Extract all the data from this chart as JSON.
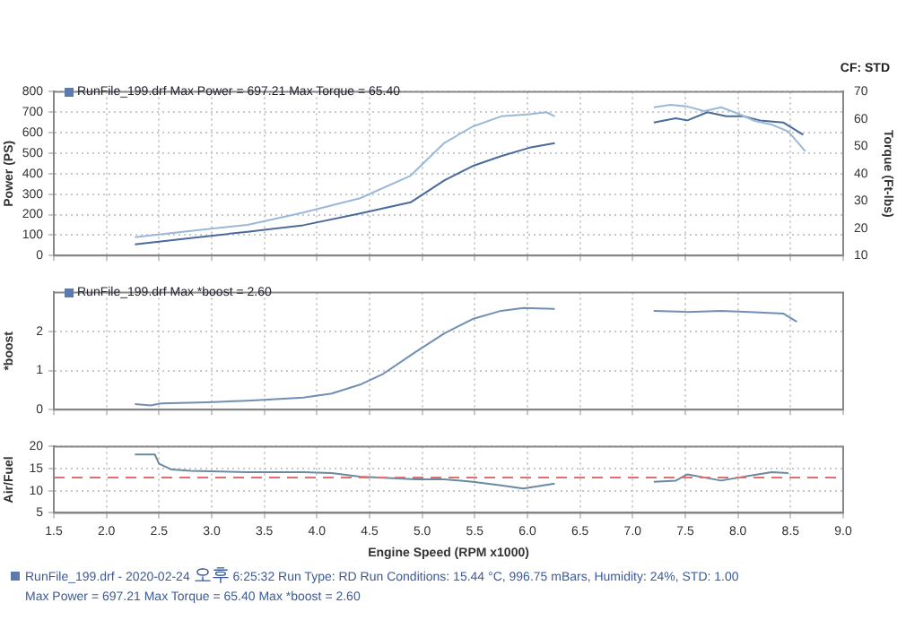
{
  "chart_data": [
    {
      "type": "line",
      "ylabel": "Power (PS)",
      "y2label": "Torque (Ft-lbs)",
      "annotations": [
        "RunFile_199.drf Max Power = 697.21    Max Torque = 65.40",
        "CF: STD"
      ],
      "xlim": [
        1.5,
        9.0
      ],
      "xticks": [
        {
          "value": 1.5,
          "label": null
        },
        {
          "value": 2,
          "label": null
        },
        {
          "value": 2.5,
          "label": null
        },
        {
          "value": 3,
          "label": null
        },
        {
          "value": 3.5,
          "label": null
        },
        {
          "value": 4,
          "label": null
        },
        {
          "value": 4.5,
          "label": null
        },
        {
          "value": 5,
          "label": null
        },
        {
          "value": 5.5,
          "label": null
        },
        {
          "value": 6,
          "label": null
        },
        {
          "value": 6.5,
          "label": null
        },
        {
          "value": 7,
          "label": null
        },
        {
          "value": 7.5,
          "label": null
        },
        {
          "value": 8,
          "label": null
        },
        {
          "value": 8.5,
          "label": null
        },
        {
          "value": 9,
          "label": null
        }
      ],
      "ylim": [
        0,
        800
      ],
      "yticks": [
        0,
        100,
        200,
        300,
        400,
        500,
        600,
        700,
        800
      ],
      "y2lim": [
        10,
        70
      ],
      "y2ticks": [
        10,
        20,
        30,
        40,
        50,
        60,
        70
      ],
      "tick_labels": "y",
      "grid": true,
      "marker": "none",
      "series": [
        {
          "color": "#9ab8d8",
          "x": [
            2.27,
            2.8,
            3.34,
            3.87,
            4.41,
            4.89,
            5.21,
            5.48,
            5.75,
            6.02,
            6.18,
            6.26
          ],
          "values": [
            90,
            120,
            150,
            210,
            280,
            390,
            550,
            630,
            680,
            690,
            700,
            680
          ]
        },
        {
          "color": "#4a6a9a",
          "axis": "y2",
          "x": [
            2.27,
            2.8,
            3.34,
            3.87,
            4.41,
            4.89,
            5.21,
            5.48,
            5.75,
            6.02,
            6.26
          ],
          "values": [
            14.1,
            16.4,
            18.7,
            21.1,
            25.4,
            29.5,
            37.5,
            42.8,
            46.4,
            49.5,
            51.2
          ]
        },
        {
          "color": "#9ab8d8",
          "axis": "y2",
          "x": [
            7.2,
            7.36,
            7.52,
            7.68,
            7.84,
            8.0,
            8.16,
            8.32,
            8.48,
            8.64
          ],
          "values": [
            64.3,
            65.2,
            64.6,
            62.9,
            64.3,
            62,
            59.3,
            58,
            55.4,
            48.2
          ]
        },
        {
          "color": "#4a6a9a",
          "x": [
            7.2,
            7.41,
            7.52,
            7.71,
            7.89,
            8.05,
            8.21,
            8.43,
            8.62
          ],
          "values": [
            650,
            670,
            660,
            700,
            680,
            680,
            660,
            650,
            590
          ]
        }
      ]
    },
    {
      "type": "line",
      "ylabel": "*boost",
      "annotations": [
        "RunFile_199.drf Max *boost = 2.60"
      ],
      "xlim": [
        1.5,
        9.0
      ],
      "xticks": [
        {
          "value": 1.5,
          "label": null
        },
        {
          "value": 2,
          "label": null
        },
        {
          "value": 2.5,
          "label": null
        },
        {
          "value": 3,
          "label": null
        },
        {
          "value": 3.5,
          "label": null
        },
        {
          "value": 4,
          "label": null
        },
        {
          "value": 4.5,
          "label": null
        },
        {
          "value": 5,
          "label": null
        },
        {
          "value": 5.5,
          "label": null
        },
        {
          "value": 6,
          "label": null
        },
        {
          "value": 6.5,
          "label": null
        },
        {
          "value": 7,
          "label": null
        },
        {
          "value": 7.5,
          "label": null
        },
        {
          "value": 8,
          "label": null
        },
        {
          "value": 8.5,
          "label": null
        },
        {
          "value": 9,
          "label": null
        }
      ],
      "ylim": [
        0,
        3
      ],
      "yticks": [
        0,
        1,
        2
      ],
      "tick_labels": "y",
      "grid": true,
      "marker": "none",
      "series": [
        {
          "color": "#6f8fb5",
          "x": [
            2.27,
            2.42,
            2.52,
            2.96,
            3.34,
            3.5,
            3.87,
            4.14,
            4.41,
            4.62,
            4.94,
            5.21,
            5.48,
            5.75,
            5.96,
            6.26
          ],
          "values": [
            0.14,
            0.11,
            0.16,
            0.19,
            0.23,
            0.25,
            0.31,
            0.41,
            0.64,
            0.9,
            1.48,
            1.95,
            2.32,
            2.53,
            2.6,
            2.58
          ]
        },
        {
          "color": "#6f8fb5",
          "x": [
            7.2,
            7.52,
            7.84,
            8.11,
            8.43,
            8.56
          ],
          "values": [
            2.53,
            2.5,
            2.53,
            2.5,
            2.46,
            2.25
          ]
        }
      ]
    },
    {
      "type": "line",
      "ylabel": "Air/Fuel",
      "xlabel": "Engine Speed (RPM x1000)",
      "annotations": [
        "RunFile_199.drf - 2020-02-24 오후 6:25:32  Run Type: RD  Run Conditions: 15.44 °C, 996.75 mBars,  Humidity: 24%, STD: 1.00",
        "Max Power = 697.21  Max Torque = 65.40  Max *boost = 2.60"
      ],
      "xlim": [
        1.5,
        9.0
      ],
      "xticks": [
        {
          "value": 1.5,
          "label": "1.5"
        },
        {
          "value": 2,
          "label": "2.0"
        },
        {
          "value": 2.5,
          "label": "2.5"
        },
        {
          "value": 3,
          "label": "3.0"
        },
        {
          "value": 3.5,
          "label": "3.5"
        },
        {
          "value": 4,
          "label": "4.0"
        },
        {
          "value": 4.5,
          "label": "4.5"
        },
        {
          "value": 5,
          "label": "5.0"
        },
        {
          "value": 5.5,
          "label": "5.5"
        },
        {
          "value": 6,
          "label": "6.0"
        },
        {
          "value": 6.5,
          "label": "6.5"
        },
        {
          "value": 7,
          "label": "7.0"
        },
        {
          "value": 7.5,
          "label": "7.5"
        },
        {
          "value": 8,
          "label": "8.0"
        },
        {
          "value": 8.5,
          "label": "8.5"
        },
        {
          "value": 9,
          "label": "9.0"
        }
      ],
      "ylim": [
        5,
        20
      ],
      "yticks": [
        5,
        10,
        15,
        20
      ],
      "grid": true,
      "marker": "none",
      "ref_lines": [
        {
          "axis": "y",
          "value": 13,
          "color": "#e07070",
          "line_style": "dashed"
        }
      ],
      "series": [
        {
          "color": "#6a8aa0",
          "x": [
            2.27,
            2.46,
            2.5,
            2.62,
            2.8,
            3.34,
            3.87,
            4.14,
            4.41,
            4.94,
            5.21,
            5.48,
            5.75,
            5.96,
            6.26
          ],
          "values": [
            18.2,
            18.2,
            16.1,
            14.8,
            14.5,
            14.2,
            14.2,
            14,
            13.2,
            12.6,
            12.6,
            12,
            11.2,
            10.5,
            11.6
          ]
        },
        {
          "color": "#6a8aa0",
          "x": [
            7.2,
            7.41,
            7.52,
            7.84,
            8.11,
            8.32,
            8.48
          ],
          "values": [
            12,
            12.3,
            13.7,
            12.3,
            13.4,
            14.2,
            14
          ]
        }
      ]
    }
  ]
}
